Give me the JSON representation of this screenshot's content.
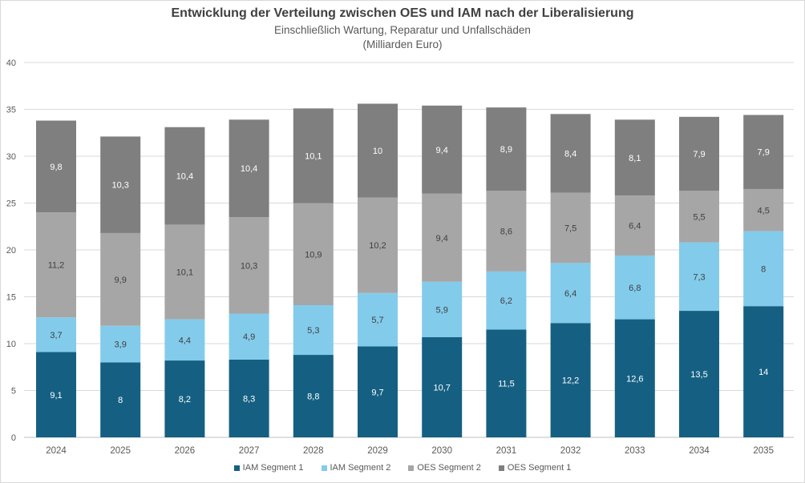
{
  "chart_data": {
    "type": "bar",
    "stacked": true,
    "title": "Entwicklung der Verteilung zwischen OES und IAM nach der Liberalisierung",
    "subtitle": "Einschließlich Wartung, Reparatur und Unfallschäden",
    "unit_label": "(Milliarden Euro)",
    "categories": [
      "2024",
      "2025",
      "2026",
      "2027",
      "2028",
      "2029",
      "2030",
      "2031",
      "2032",
      "2033",
      "2034",
      "2035"
    ],
    "series": [
      {
        "name": "IAM Segment 1",
        "color": "#156082",
        "label_color": "#ffffff",
        "values": [
          9.1,
          8,
          8.2,
          8.3,
          8.8,
          9.7,
          10.7,
          11.5,
          12.2,
          12.6,
          13.5,
          14
        ]
      },
      {
        "name": "IAM Segment 2",
        "color": "#83cbeb",
        "label_color": "#404040",
        "values": [
          3.7,
          3.9,
          4.4,
          4.9,
          5.3,
          5.7,
          5.9,
          6.2,
          6.4,
          6.8,
          7.3,
          8
        ]
      },
      {
        "name": "OES Segment 2",
        "color": "#a6a6a6",
        "label_color": "#404040",
        "values": [
          11.2,
          9.9,
          10.1,
          10.3,
          10.9,
          10.2,
          9.4,
          8.6,
          7.5,
          6.4,
          5.5,
          4.5
        ]
      },
      {
        "name": "OES Segment 1",
        "color": "#7f7f7f",
        "label_color": "#ffffff",
        "values": [
          9.8,
          10.3,
          10.4,
          10.4,
          10.1,
          10,
          9.4,
          8.9,
          8.4,
          8.1,
          7.9,
          7.9
        ]
      }
    ],
    "ylim": [
      0,
      40
    ],
    "yticks": [
      0,
      5,
      10,
      15,
      20,
      25,
      30,
      35,
      40
    ],
    "grid": true,
    "legend": "bottom",
    "decimal_separator": ","
  }
}
